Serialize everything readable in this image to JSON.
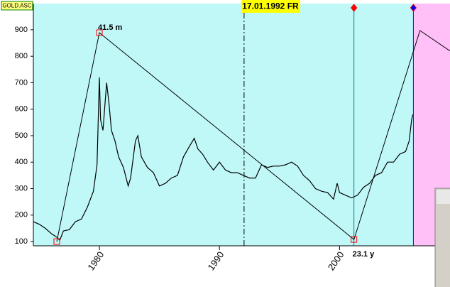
{
  "chart_data": {
    "type": "line",
    "title": "GOLD.ASC",
    "date_label": "17.01.1992 FR",
    "date_line_x": 1992.05,
    "xlim": [
      1974.5,
      2009.2
    ],
    "ylim": [
      84,
      999
    ],
    "xticks": [
      1980,
      1990,
      2000
    ],
    "yticks": [
      100,
      200,
      300,
      400,
      500,
      600,
      700,
      800,
      900
    ],
    "background": "#c0f8f8",
    "shaded_from": 2006.2,
    "shaded_color": "#ffc0f8",
    "color": "#000000",
    "x": [
      1974.5,
      1975,
      1975.5,
      1976,
      1976.5,
      1976.7,
      1977,
      1977.5,
      1978,
      1978.5,
      1979,
      1979.5,
      1979.8,
      1980,
      1980.1,
      1980.3,
      1980.6,
      1980.8,
      1981,
      1981.3,
      1981.6,
      1982,
      1982.4,
      1982.6,
      1983,
      1983.2,
      1983.5,
      1984,
      1984.5,
      1985,
      1985.5,
      1986,
      1986.5,
      1987,
      1987.5,
      1987.9,
      1988.2,
      1988.6,
      1989,
      1989.5,
      1990,
      1990.5,
      1991,
      1991.5,
      1992,
      1992.5,
      1993,
      1993.5,
      1994,
      1994.5,
      1995,
      1995.5,
      1996,
      1996.5,
      1997,
      1997.5,
      1998,
      1998.5,
      1999,
      1999.5,
      1999.8,
      2000,
      2000.5,
      2001,
      2001.5,
      2002,
      2002.5,
      2003,
      2003.5,
      2004,
      2004.5,
      2005,
      2005.5,
      2005.8,
      2006,
      2006.1
    ],
    "values": [
      175,
      165,
      150,
      130,
      115,
      105,
      140,
      145,
      175,
      185,
      230,
      290,
      390,
      720,
      560,
      520,
      700,
      620,
      520,
      480,
      420,
      380,
      310,
      340,
      480,
      500,
      420,
      380,
      360,
      310,
      320,
      340,
      350,
      420,
      460,
      490,
      450,
      430,
      400,
      370,
      400,
      370,
      360,
      360,
      350,
      340,
      340,
      390,
      380,
      385,
      385,
      390,
      400,
      385,
      350,
      330,
      300,
      290,
      285,
      260,
      320,
      285,
      275,
      265,
      275,
      305,
      320,
      350,
      360,
      400,
      400,
      430,
      440,
      480,
      560,
      580
    ],
    "trendline": {
      "x": [
        1976.45,
        1980.0,
        2001.2,
        2006.7,
        2009.2
      ],
      "values": [
        100,
        889,
        108,
        897,
        820
      ],
      "color": "#000000"
    },
    "markers": [
      {
        "x": 2001.2,
        "color": "#008080"
      },
      {
        "x": 2006.15,
        "color": "#0000ff"
      }
    ],
    "annotations": [
      {
        "text": "41.5 m"
      },
      {
        "text": "23.1 y"
      }
    ]
  }
}
